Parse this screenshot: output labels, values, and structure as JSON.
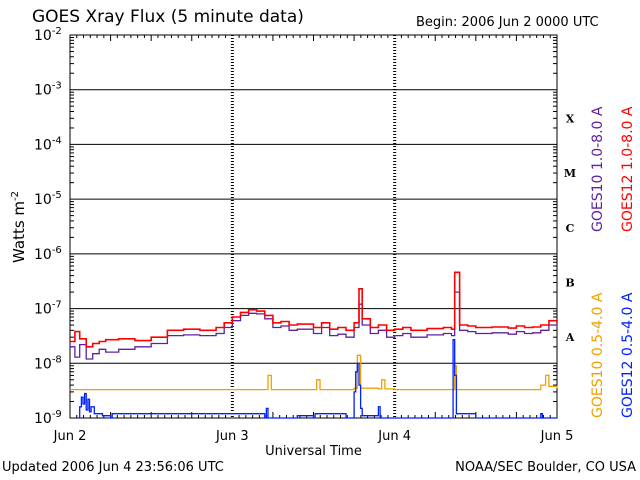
{
  "chart_data": {
    "type": "line",
    "title": "GOES Xray Flux (5 minute data)",
    "begin_label": "Begin:  2006 Jun 2 0000 UTC",
    "xlabel": "Universal Time",
    "ylabel_main": "Watts m",
    "ylabel_exp": "-2",
    "y_scale": "log",
    "ylim": [
      1e-09,
      0.01
    ],
    "xlim": [
      0,
      3
    ],
    "grid": true,
    "y_ticks": [
      {
        "value": 0.01,
        "base": "10",
        "exp": "-2"
      },
      {
        "value": 0.001,
        "base": "10",
        "exp": "-3"
      },
      {
        "value": 0.0001,
        "base": "10",
        "exp": "-4"
      },
      {
        "value": 1e-05,
        "base": "10",
        "exp": "-5"
      },
      {
        "value": 1e-06,
        "base": "10",
        "exp": "-6"
      },
      {
        "value": 1e-07,
        "base": "10",
        "exp": "-7"
      },
      {
        "value": 1e-08,
        "base": "10",
        "exp": "-8"
      },
      {
        "value": 1e-09,
        "base": "10",
        "exp": "-9"
      }
    ],
    "x_ticks": [
      {
        "value": 0,
        "label": "Jun 2"
      },
      {
        "value": 1,
        "label": "Jun 3"
      },
      {
        "value": 2,
        "label": "Jun 4"
      },
      {
        "value": 3,
        "label": "Jun 5"
      }
    ],
    "flare_classes": [
      {
        "label": "X",
        "value": 0.0003
      },
      {
        "label": "M",
        "value": 3e-05
      },
      {
        "label": "C",
        "value": 3e-06
      },
      {
        "label": "B",
        "value": 3e-07
      },
      {
        "label": "A",
        "value": 3e-08
      }
    ],
    "series": [
      {
        "name": "GOES10 1.0-8.0 A",
        "color": "#6020a0",
        "x": [
          0,
          0.03,
          0.06,
          0.1,
          0.14,
          0.18,
          0.22,
          0.3,
          0.4,
          0.5,
          0.6,
          0.7,
          0.8,
          0.9,
          0.95,
          1.0,
          1.05,
          1.1,
          1.15,
          1.2,
          1.25,
          1.3,
          1.35,
          1.4,
          1.5,
          1.55,
          1.6,
          1.65,
          1.7,
          1.75,
          1.78,
          1.8,
          1.85,
          1.9,
          1.95,
          2.0,
          2.05,
          2.1,
          2.2,
          2.3,
          2.35,
          2.37,
          2.4,
          2.45,
          2.5,
          2.6,
          2.7,
          2.75,
          2.8,
          2.85,
          2.9,
          2.95,
          3.0
        ],
        "y": [
          2e-08,
          1.3e-08,
          2.2e-08,
          1.2e-08,
          1.5e-08,
          1.8e-08,
          1.6e-08,
          1.8e-08,
          2e-08,
          2.3e-08,
          3.2e-08,
          3.3e-08,
          3.2e-08,
          3.5e-08,
          4.5e-08,
          6e-08,
          7.5e-08,
          8.2e-08,
          8e-08,
          6.5e-08,
          4.5e-08,
          4.8e-08,
          4e-08,
          4.2e-08,
          3.5e-08,
          4.5e-08,
          3.2e-08,
          3.4e-08,
          3e-08,
          4.5e-08,
          1.2e-07,
          5e-08,
          3.5e-08,
          4e-08,
          3e-08,
          3.2e-08,
          3.5e-08,
          3e-08,
          3.3e-08,
          3.5e-08,
          3.2e-08,
          2e-07,
          4e-08,
          3.8e-08,
          3.5e-08,
          3.6e-08,
          3.4e-08,
          3.8e-08,
          3.5e-08,
          3.6e-08,
          4e-08,
          5e-08,
          4.5e-08
        ]
      },
      {
        "name": "GOES12 1.0-8.0 A",
        "color": "#ff0000",
        "x": [
          0,
          0.03,
          0.06,
          0.1,
          0.14,
          0.18,
          0.22,
          0.3,
          0.4,
          0.5,
          0.6,
          0.7,
          0.8,
          0.9,
          0.95,
          1.0,
          1.05,
          1.1,
          1.15,
          1.2,
          1.25,
          1.3,
          1.35,
          1.4,
          1.5,
          1.55,
          1.6,
          1.65,
          1.7,
          1.75,
          1.78,
          1.8,
          1.85,
          1.9,
          1.95,
          2.0,
          2.05,
          2.1,
          2.2,
          2.3,
          2.35,
          2.37,
          2.4,
          2.45,
          2.5,
          2.6,
          2.7,
          2.75,
          2.8,
          2.85,
          2.9,
          2.95,
          3.0
        ],
        "y": [
          2.5e-08,
          3.8e-08,
          2.8e-08,
          2e-08,
          2.3e-08,
          2.5e-08,
          2.7e-08,
          2.8e-08,
          2.6e-08,
          3e-08,
          4e-08,
          4.2e-08,
          4e-08,
          4.5e-08,
          5.5e-08,
          7e-08,
          8.5e-08,
          9.5e-08,
          9e-08,
          7.5e-08,
          5.5e-08,
          5.8e-08,
          5e-08,
          5.2e-08,
          4.5e-08,
          5.5e-08,
          4.2e-08,
          4.5e-08,
          4e-08,
          5.5e-08,
          2.3e-07,
          6.5e-08,
          4.5e-08,
          5e-08,
          4e-08,
          4.2e-08,
          4.5e-08,
          4e-08,
          4.3e-08,
          4.5e-08,
          4.2e-08,
          4.6e-07,
          5e-08,
          4.8e-08,
          4.5e-08,
          4.6e-08,
          4.4e-08,
          4.8e-08,
          4.5e-08,
          4.6e-08,
          5e-08,
          6e-08,
          5.5e-08
        ]
      },
      {
        "name": "GOES10 0.5-4.0 A",
        "color": "#f0a000",
        "x": [
          0,
          0.25,
          0.5,
          0.75,
          1.0,
          1.2,
          1.22,
          1.24,
          1.5,
          1.52,
          1.54,
          1.7,
          1.75,
          1.77,
          1.79,
          1.9,
          1.92,
          1.94,
          2.0,
          2.2,
          2.36,
          2.37,
          2.38,
          2.6,
          2.8,
          2.85,
          2.9,
          2.93,
          2.95,
          3.0
        ],
        "y": [
          3.3e-09,
          3.3e-09,
          3.3e-09,
          3.3e-09,
          3.3e-09,
          3.3e-09,
          6e-09,
          3.3e-09,
          3.3e-09,
          5e-09,
          3.3e-09,
          3.3e-09,
          3.5e-09,
          1.4e-08,
          3.5e-09,
          3.4e-09,
          5e-09,
          3.4e-09,
          3.3e-09,
          3.3e-09,
          3.3e-09,
          9e-09,
          3.3e-09,
          3.3e-09,
          3.3e-09,
          3.3e-09,
          4e-09,
          6e-09,
          3.8e-09,
          3.5e-09
        ]
      },
      {
        "name": "GOES12 0.5-4.0 A",
        "color": "#0020ff",
        "x": [
          0.05,
          0.06,
          0.07,
          0.08,
          0.09,
          0.1,
          0.11,
          0.12,
          0.13,
          0.15,
          0.2,
          0.25,
          0.26,
          1.2,
          1.21,
          1.22,
          1.4,
          1.5,
          1.51,
          1.7,
          1.75,
          1.76,
          1.77,
          1.78,
          1.79,
          1.8,
          1.9,
          1.91,
          2.1,
          2.35,
          2.36,
          2.37,
          2.38,
          2.5,
          2.8,
          2.9,
          2.91,
          3.0
        ],
        "y": [
          1e-09,
          1.6e-09,
          2.4e-09,
          1.8e-09,
          2.8e-09,
          1.4e-09,
          2.2e-09,
          1.3e-09,
          1.6e-09,
          1.2e-09,
          1.1e-09,
          1e-09,
          1.2e-09,
          1e-09,
          1.5e-09,
          1e-09,
          1.1e-09,
          1e-09,
          1.2e-09,
          1e-09,
          3e-09,
          7e-09,
          1e-08,
          4e-09,
          1.5e-09,
          1.1e-09,
          1.6e-09,
          1e-09,
          1e-09,
          1e-09,
          2.7e-08,
          6e-09,
          1.2e-09,
          1e-09,
          1e-09,
          1.2e-09,
          1e-09,
          1e-09
        ]
      }
    ]
  },
  "footer": {
    "updated": "Updated 2006 Jun  4 23:56:06 UTC",
    "credit": "NOAA/SEC Boulder, CO USA"
  }
}
